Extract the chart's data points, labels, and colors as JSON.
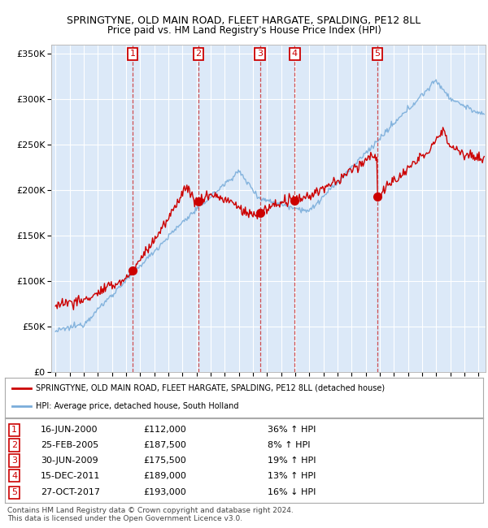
{
  "title1": "SPRINGTYNE, OLD MAIN ROAD, FLEET HARGATE, SPALDING, PE12 8LL",
  "title2": "Price paid vs. HM Land Registry's House Price Index (HPI)",
  "ylim": [
    0,
    360000
  ],
  "yticks": [
    0,
    50000,
    100000,
    150000,
    200000,
    250000,
    300000,
    350000
  ],
  "ytick_labels": [
    "£0",
    "£50K",
    "£100K",
    "£150K",
    "£200K",
    "£250K",
    "£300K",
    "£350K"
  ],
  "xlim_start": 1994.7,
  "xlim_end": 2025.5,
  "background_color": "#ffffff",
  "plot_bg_color": "#dce9f8",
  "grid_color": "#ffffff",
  "red_line_color": "#cc0000",
  "blue_line_color": "#7aadda",
  "dashed_line_color": "#cc3333",
  "sale_dates": [
    2000.46,
    2005.14,
    2009.5,
    2011.96,
    2017.82
  ],
  "sale_prices": [
    112000,
    187500,
    175500,
    189000,
    193000
  ],
  "sale_labels": [
    "1",
    "2",
    "3",
    "4",
    "5"
  ],
  "sale_info": [
    [
      "16-JUN-2000",
      "£112,000",
      "36% ↑ HPI"
    ],
    [
      "25-FEB-2005",
      "£187,500",
      "8% ↑ HPI"
    ],
    [
      "30-JUN-2009",
      "£175,500",
      "19% ↑ HPI"
    ],
    [
      "15-DEC-2011",
      "£189,000",
      "13% ↑ HPI"
    ],
    [
      "27-OCT-2017",
      "£193,000",
      "16% ↓ HPI"
    ]
  ],
  "legend_red_label": "SPRINGTYNE, OLD MAIN ROAD, FLEET HARGATE, SPALDING, PE12 8LL (detached house)",
  "legend_blue_label": "HPI: Average price, detached house, South Holland",
  "footer": "Contains HM Land Registry data © Crown copyright and database right 2024.\nThis data is licensed under the Open Government Licence v3.0."
}
